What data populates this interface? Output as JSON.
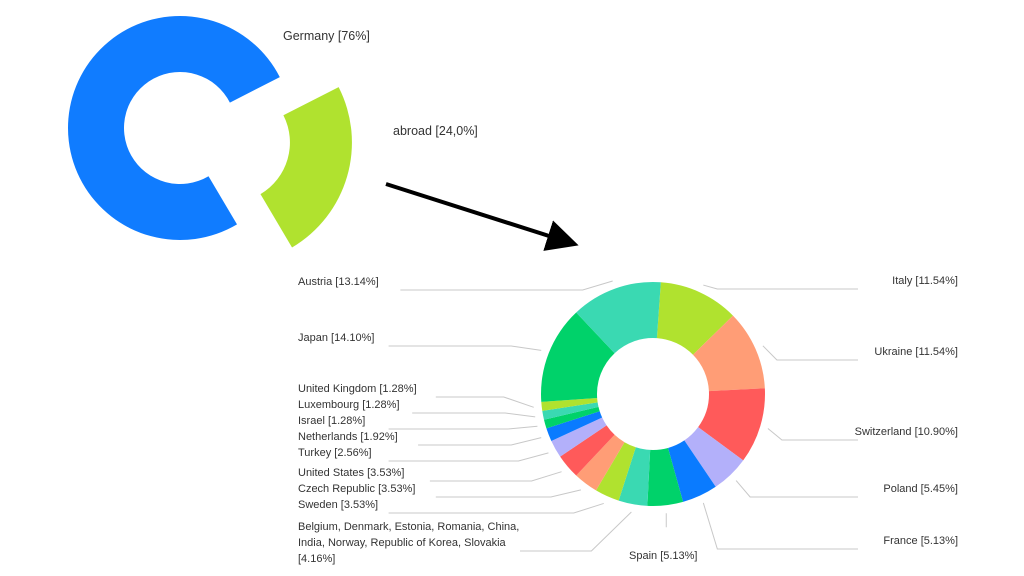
{
  "chart_data": [
    {
      "type": "pie",
      "variant": "donut-exploded",
      "labels": [
        "Germany [76%]",
        "abroad [24,0%]"
      ],
      "categories": [
        "Germany",
        "abroad"
      ],
      "values": [
        76,
        24.0
      ],
      "exploded": [
        "abroad"
      ],
      "colors": [
        "#107cff",
        "#b0e22f"
      ]
    },
    {
      "type": "pie",
      "variant": "donut",
      "categories": [
        "Italy",
        "Ukraine",
        "Switzerland",
        "Poland",
        "France",
        "Spain",
        "Belgium, Denmark, Estonia, Romania, China, India, Norway, Republic of Korea, Slovakia",
        "Sweden",
        "Czech Republic",
        "United States",
        "Turkey",
        "Netherlands",
        "Israel",
        "Luxembourg",
        "United Kingdom",
        "Japan",
        "Austria"
      ],
      "values": [
        11.54,
        11.54,
        10.9,
        5.45,
        5.13,
        5.13,
        4.16,
        3.53,
        3.53,
        3.53,
        2.56,
        1.92,
        1.28,
        1.28,
        1.28,
        14.1,
        13.14
      ],
      "labels": [
        "Italy [11.54%]",
        "Ukraine [11.54%]",
        "Switzerland [10.90%]",
        "Poland [5.45%]",
        "France [5.13%]",
        "Spain [5.13%]",
        "Belgium, Denmark, Estonia, Romania, China, India, Norway, Republic of Korea, Slovakia [4.16%]",
        "Sweden [3.53%]",
        "Czech Republic [3.53%]",
        "United States [3.53%]",
        "Turkey [2.56%]",
        "Netherlands [1.92%]",
        "Israel [1.28%]",
        "Luxembourg [1.28%]",
        "United Kingdom [1.28%]",
        "Japan [14.10%]",
        "Austria [13.14%]"
      ],
      "colors": [
        "#b0e22f",
        "#ff9d76",
        "#ff5a5a",
        "#b3b0fa",
        "#0a7bff",
        "#00d26a",
        "#3ad9b2",
        "#b0e22f",
        "#ff9d76",
        "#ff5a5a",
        "#b3b0fa",
        "#0a7bff",
        "#00d26a",
        "#3ad9b2",
        "#b0e22f",
        "#00d26a",
        "#3ad9b2"
      ]
    }
  ],
  "arrow": "from abroad slice to breakdown chart"
}
